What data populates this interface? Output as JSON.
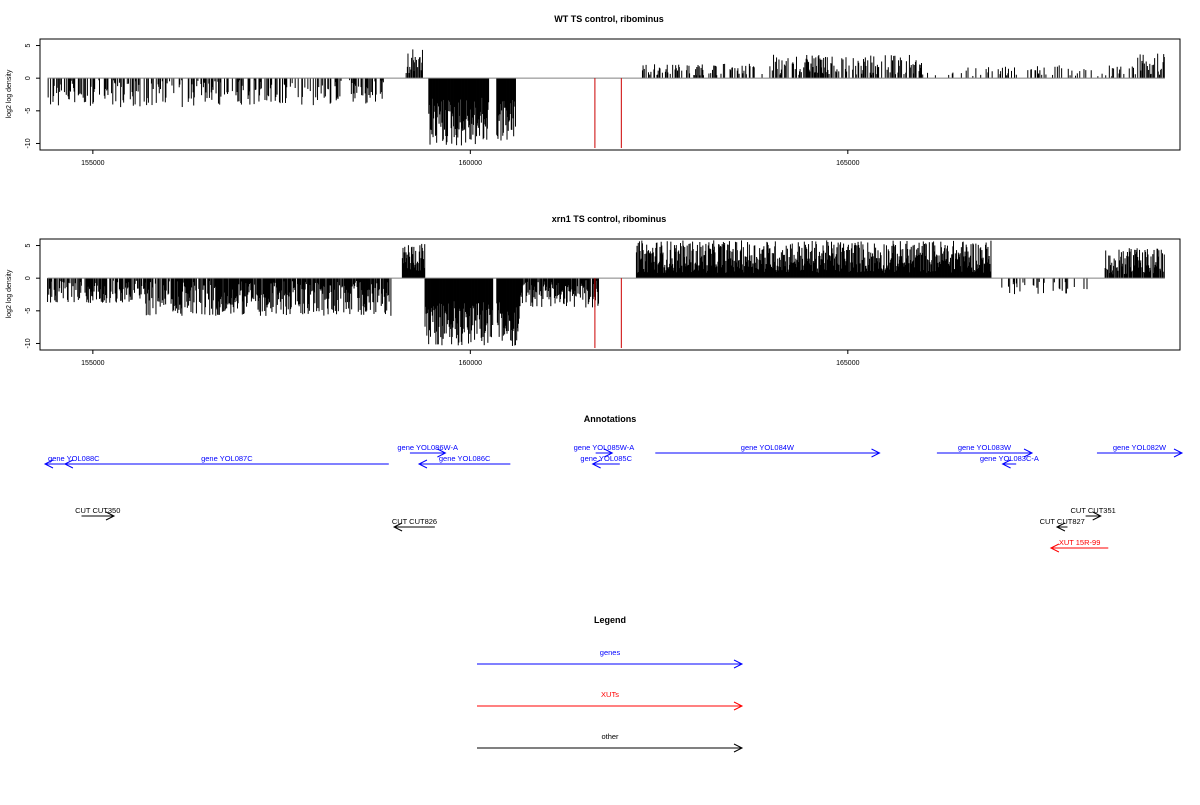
{
  "chart_data": [
    {
      "type": "bar",
      "title": "WT TS control, ribominus",
      "ylabel": "log2 log density",
      "xlabel": "",
      "xlim": [
        154300,
        169400
      ],
      "ylim": [
        -11,
        6
      ],
      "x_ticks": [
        155000,
        160000,
        165000
      ],
      "x_tick_labels": [
        "155000",
        "160000",
        "165000"
      ],
      "y_ticks": [
        5,
        0,
        -5,
        -10
      ],
      "y_tick_labels": [
        "5",
        "0",
        "-5",
        "-10"
      ],
      "red_lines": [
        161650,
        162000
      ],
      "red_line_depth": -10.7,
      "segments": [
        {
          "start": 154400,
          "end": 156400,
          "sign": -1,
          "density": 0.45,
          "amin": 0.3,
          "amax": 4.5
        },
        {
          "start": 156400,
          "end": 158900,
          "sign": -1,
          "density": 0.4,
          "amin": 0.3,
          "amax": 4.2
        },
        {
          "start": 159150,
          "end": 159380,
          "sign": 1,
          "density": 0.55,
          "amin": 0.5,
          "amax": 4.6
        },
        {
          "start": 159450,
          "end": 160250,
          "sign": -1,
          "density": 1.0,
          "amin": 3.0,
          "amax": 10.5
        },
        {
          "start": 160350,
          "end": 160600,
          "sign": -1,
          "density": 1.0,
          "amin": 3.0,
          "amax": 9.8
        },
        {
          "start": 162200,
          "end": 164000,
          "sign": 1,
          "density": 0.3,
          "amin": 0.4,
          "amax": 2.2
        },
        {
          "start": 164000,
          "end": 166000,
          "sign": 1,
          "density": 0.45,
          "amin": 0.5,
          "amax": 3.6
        },
        {
          "start": 166000,
          "end": 168800,
          "sign": 1,
          "density": 0.2,
          "amin": 0.3,
          "amax": 2.0
        },
        {
          "start": 168800,
          "end": 169200,
          "sign": 1,
          "density": 0.5,
          "amin": 0.5,
          "amax": 3.8
        }
      ]
    },
    {
      "type": "bar",
      "title": "xrn1 TS control, ribominus",
      "ylabel": "log2 log density",
      "xlabel": "",
      "xlim": [
        154300,
        169400
      ],
      "ylim": [
        -11,
        6
      ],
      "x_ticks": [
        155000,
        160000,
        165000
      ],
      "x_tick_labels": [
        "155000",
        "160000",
        "165000"
      ],
      "y_ticks": [
        5,
        0,
        -5,
        -10
      ],
      "y_tick_labels": [
        "5",
        "0",
        "-5",
        "-10"
      ],
      "red_lines": [
        161650,
        162000
      ],
      "red_line_depth": -10.7,
      "segments": [
        {
          "start": 154400,
          "end": 155700,
          "sign": -1,
          "density": 0.7,
          "amin": 0.3,
          "amax": 3.8
        },
        {
          "start": 155700,
          "end": 158950,
          "sign": -1,
          "density": 0.85,
          "amin": 0.4,
          "amax": 5.8
        },
        {
          "start": 159100,
          "end": 159400,
          "sign": 1,
          "density": 1.0,
          "amin": 1.0,
          "amax": 5.4
        },
        {
          "start": 159400,
          "end": 160300,
          "sign": -1,
          "density": 1.0,
          "amin": 3.5,
          "amax": 10.3
        },
        {
          "start": 160350,
          "end": 160650,
          "sign": -1,
          "density": 1.0,
          "amin": 3.5,
          "amax": 10.5
        },
        {
          "start": 160650,
          "end": 161700,
          "sign": -1,
          "density": 0.85,
          "amin": 0.3,
          "amax": 4.5
        },
        {
          "start": 162200,
          "end": 166900,
          "sign": 1,
          "density": 1.0,
          "amin": 0.8,
          "amax": 5.8
        },
        {
          "start": 167000,
          "end": 168200,
          "sign": -1,
          "density": 0.2,
          "amin": 0.3,
          "amax": 2.5
        },
        {
          "start": 168400,
          "end": 169200,
          "sign": 1,
          "density": 0.8,
          "amin": 0.5,
          "amax": 4.6
        }
      ]
    }
  ],
  "annotations": {
    "title": "Annotations",
    "genes": [
      {
        "label": "gene YOL088C",
        "start": 154330,
        "end": 155130,
        "dir": "left",
        "row": 1
      },
      {
        "label": "gene YOL087C",
        "start": 154630,
        "end": 158920,
        "dir": "left",
        "row": 1
      },
      {
        "label": "gene YOL086W-A",
        "start": 159200,
        "end": 159670,
        "dir": "right",
        "row": 0
      },
      {
        "label": "gene YOL086C",
        "start": 159320,
        "end": 160530,
        "dir": "left",
        "row": 1
      },
      {
        "label": "gene YOL085W-A",
        "start": 161660,
        "end": 161880,
        "dir": "right",
        "row": 0
      },
      {
        "label": "gene YOL085C",
        "start": 161620,
        "end": 161980,
        "dir": "left",
        "row": 1
      },
      {
        "label": "gene YOL084W",
        "start": 162450,
        "end": 165420,
        "dir": "right",
        "row": 0
      },
      {
        "label": "gene YOL083W",
        "start": 166180,
        "end": 167440,
        "dir": "right",
        "row": 0
      },
      {
        "label": "gene YOL083C-A",
        "start": 167050,
        "end": 167230,
        "dir": "left",
        "row": 1
      },
      {
        "label": "gene YOL082W",
        "start": 168300,
        "end": 169490,
        "dir": "right",
        "row": 0
      }
    ],
    "others": [
      {
        "label": "CUT CUT350",
        "start": 154850,
        "end": 155280,
        "dir": "right",
        "row": 3
      },
      {
        "label": "CUT CUT826",
        "start": 158990,
        "end": 159530,
        "dir": "left",
        "row": 4
      },
      {
        "label": "CUT CUT351",
        "start": 168150,
        "end": 168350,
        "dir": "right",
        "row": 3
      },
      {
        "label": "CUT CUT827",
        "start": 167770,
        "end": 167910,
        "dir": "left",
        "row": 4
      }
    ],
    "xuts": [
      {
        "label": "XUT 15R-99",
        "start": 167690,
        "end": 168450,
        "dir": "left",
        "row": 5
      }
    ]
  },
  "legend": {
    "title": "Legend",
    "items": [
      {
        "label": "genes",
        "color": "#0000ff"
      },
      {
        "label": "XUTs",
        "color": "#ff0000"
      },
      {
        "label": "other",
        "color": "#000000"
      }
    ]
  },
  "colors": {
    "gene": "#0000ff",
    "xut": "#ff0000",
    "other": "#000000",
    "marker": "#cc0000",
    "bars": "#000000",
    "axis": "#000000",
    "zero": "#808080"
  }
}
